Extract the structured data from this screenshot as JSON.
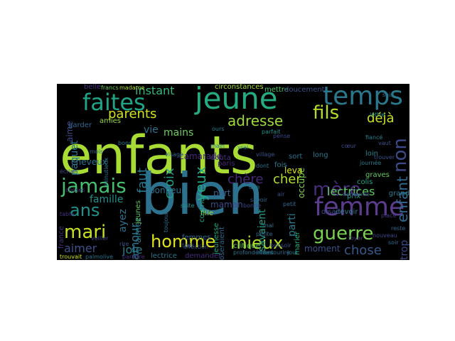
{
  "words": [
    {
      "text": "enfants",
      "color": "#a8db34"
    },
    {
      "text": "bien",
      "color": "#2c728e"
    },
    {
      "text": "jeune",
      "color": "#25ab82"
    },
    {
      "text": "temps",
      "color": "#2a788e"
    },
    {
      "text": "femme",
      "color": "#5c3c8c"
    },
    {
      "text": "faites",
      "color": "#20a386"
    },
    {
      "text": "fils",
      "color": "#b5de2b"
    },
    {
      "text": "jamais",
      "color": "#44bf70"
    },
    {
      "text": "mère",
      "color": "#472d7b"
    },
    {
      "text": "guerre",
      "color": "#7ad151"
    },
    {
      "text": "mari",
      "color": "#c8e020"
    },
    {
      "text": "homme",
      "color": "#dde318"
    },
    {
      "text": "mieux",
      "color": "#b5de2b"
    },
    {
      "text": "ans",
      "color": "#20928c"
    },
    {
      "text": "non",
      "color": "#3e4989"
    },
    {
      "text": "enfant",
      "color": "#31688e"
    },
    {
      "text": "adresse",
      "color": "#a0da39"
    },
    {
      "text": "parents",
      "color": "#d2e21b"
    },
    {
      "text": "déjà",
      "color": "#cae11f"
    },
    {
      "text": "instant",
      "color": "#35b779"
    },
    {
      "text": "yeux",
      "color": "#22a884"
    },
    {
      "text": "croix",
      "color": "#1f9e89"
    },
    {
      "text": "faut",
      "color": "#2a788e"
    },
    {
      "text": "chère",
      "color": "#482878"
    },
    {
      "text": "cher",
      "color": "#b5de2b"
    },
    {
      "text": "chose",
      "color": "#38588c"
    },
    {
      "text": "famille",
      "color": "#21918c"
    },
    {
      "text": "amour",
      "color": "#2a788e"
    },
    {
      "text": "aimer",
      "color": "#3b528b"
    },
    {
      "text": "joie",
      "color": "#287c8e"
    },
    {
      "text": "lectrices",
      "color": "#5ec962"
    },
    {
      "text": "trop",
      "color": "#3e4989"
    },
    {
      "text": "vie",
      "color": "#2c728e"
    },
    {
      "text": "mains",
      "color": "#6ccd5a"
    },
    {
      "text": "moment",
      "color": "#3b528b"
    },
    {
      "text": "parti",
      "color": "#287c8e"
    },
    {
      "text": "savaient",
      "color": "#1fa088"
    },
    {
      "text": "maman",
      "color": "#3e4a89"
    },
    {
      "text": "part",
      "color": "#35608d"
    },
    {
      "text": "camarade",
      "color": "#472a7a"
    },
    {
      "text": "bonheur",
      "color": "#2d708e"
    },
    {
      "text": "circonstances",
      "color": "#a5db36"
    },
    {
      "text": "mettre",
      "color": "#52c569"
    },
    {
      "text": "doucement",
      "color": "#3b528b"
    },
    {
      "text": "lettre",
      "color": "#21918c"
    },
    {
      "text": "belle",
      "color": "#46337e"
    },
    {
      "text": "francs",
      "color": "#6ccd5a"
    },
    {
      "text": "madame",
      "color": "#b0dd2f"
    },
    {
      "text": "paquet",
      "color": "#2a788e"
    },
    {
      "text": "garder",
      "color": "#31688e"
    },
    {
      "text": "cheveux",
      "color": "#2c728e"
    },
    {
      "text": "amies",
      "color": "#93d741"
    },
    {
      "text": "occupe",
      "color": "#7ad151"
    },
    {
      "text": "fille",
      "color": "#a0da39"
    },
    {
      "text": "critique",
      "color": "#5ec962"
    },
    {
      "text": "colis",
      "color": "#20a486"
    },
    {
      "text": "devoir",
      "color": "#277f8e"
    },
    {
      "text": "grand",
      "color": "#287d8e"
    },
    {
      "text": "prix",
      "color": "#1e9b8a"
    },
    {
      "text": "graves",
      "color": "#65cb5e"
    },
    {
      "text": "leva",
      "color": "#dde318"
    },
    {
      "text": "disait",
      "color": "#3e4a89"
    },
    {
      "text": "demander",
      "color": "#472c7a"
    },
    {
      "text": "lectrice",
      "color": "#2a788e"
    },
    {
      "text": "jeunesse",
      "color": "#22a785"
    },
    {
      "text": "courrier",
      "color": "#22a884"
    },
    {
      "text": "douta",
      "color": "#46337e"
    },
    {
      "text": "paris",
      "color": "#482878"
    },
    {
      "text": "long",
      "color": "#2a788e"
    },
    {
      "text": "loin",
      "color": "#25848e"
    },
    {
      "text": "marier",
      "color": "#2ab07f"
    },
    {
      "text": "demande",
      "color": "#404688"
    },
    {
      "text": "fiancé",
      "color": "#277f8e"
    },
    {
      "text": "vaut",
      "color": "#3b528b"
    },
    {
      "text": "ayez",
      "color": "#2c728e"
    },
    {
      "text": "aimez",
      "color": "#2a788e"
    },
    {
      "text": "france",
      "color": "#46327e"
    },
    {
      "text": "trouvait",
      "color": "#c8e020"
    },
    {
      "text": "palmolive",
      "color": "#2c728e"
    },
    {
      "text": "rire",
      "color": "#3b528b"
    },
    {
      "text": "table",
      "color": "#46337e"
    },
    {
      "text": "jeunes",
      "color": "#5ec962"
    },
    {
      "text": "femmes",
      "color": "#31688e"
    },
    {
      "text": "aime",
      "color": "#3e4989"
    },
    {
      "text": "tods",
      "color": "#3b528b"
    },
    {
      "text": "oseraient",
      "color": "#31688e"
    },
    {
      "text": "robes",
      "color": "#2c728e"
    },
    {
      "text": "sourire",
      "color": "#31688e"
    },
    {
      "text": "jour",
      "color": "#2a788e"
    },
    {
      "text": "petite",
      "color": "#31688e"
    },
    {
      "text": "suite",
      "color": "#20928c"
    },
    {
      "text": "village",
      "color": "#3b528b"
    },
    {
      "text": "journée",
      "color": "#2a788e"
    },
    {
      "text": "veiller",
      "color": "#404688"
    },
    {
      "text": "minutieux",
      "color": "#2c728e"
    },
    {
      "text": "toujours",
      "color": "#2c728e"
    },
    {
      "text": "affection",
      "color": "#3b528b"
    },
    {
      "text": "paraître",
      "color": "#472d7b"
    },
    {
      "text": "profondément",
      "color": "#2c728e"
    },
    {
      "text": "ours",
      "color": "#287c8e"
    },
    {
      "text": "parfait",
      "color": "#21918c"
    },
    {
      "text": "savoir",
      "color": "#31688e"
    },
    {
      "text": "bonne",
      "color": "#3e4989"
    },
    {
      "text": "sort",
      "color": "#2c728e"
    },
    {
      "text": "fois",
      "color": "#287c8e"
    },
    {
      "text": "place",
      "color": "#433e85"
    },
    {
      "text": "nouveau",
      "color": "#404688"
    },
    {
      "text": "reste",
      "color": "#31688e"
    },
    {
      "text": "sais",
      "color": "#2c728e"
    },
    {
      "text": "trouver",
      "color": "#3b528b"
    },
    {
      "text": "pense",
      "color": "#3e4989"
    },
    {
      "text": "bons",
      "color": "#287c8e"
    },
    {
      "text": "mois",
      "color": "#31688e"
    },
    {
      "text": "choses",
      "color": "#46337e"
    },
    {
      "text": "écrire",
      "color": "#3e4989"
    },
    {
      "text": "vrai",
      "color": "#2a788e"
    },
    {
      "text": "dont",
      "color": "#2c728e"
    },
    {
      "text": "petit",
      "color": "#31688e"
    },
    {
      "text": "air",
      "color": "#3b528b"
    },
    {
      "text": "main",
      "color": "#2a788e"
    },
    {
      "text": "foyer",
      "color": "#46337e"
    },
    {
      "text": "soir",
      "color": "#31688e"
    },
    {
      "text": "cœur",
      "color": "#3e4989"
    },
    {
      "text": "mal",
      "color": "#2c728e"
    },
    {
      "text": "dire",
      "color": "#2a788e"
    },
    {
      "text": "bonsoir",
      "color": "#3b528b"
    },
    {
      "text": "visage",
      "color": "#31688e"
    }
  ]
}
